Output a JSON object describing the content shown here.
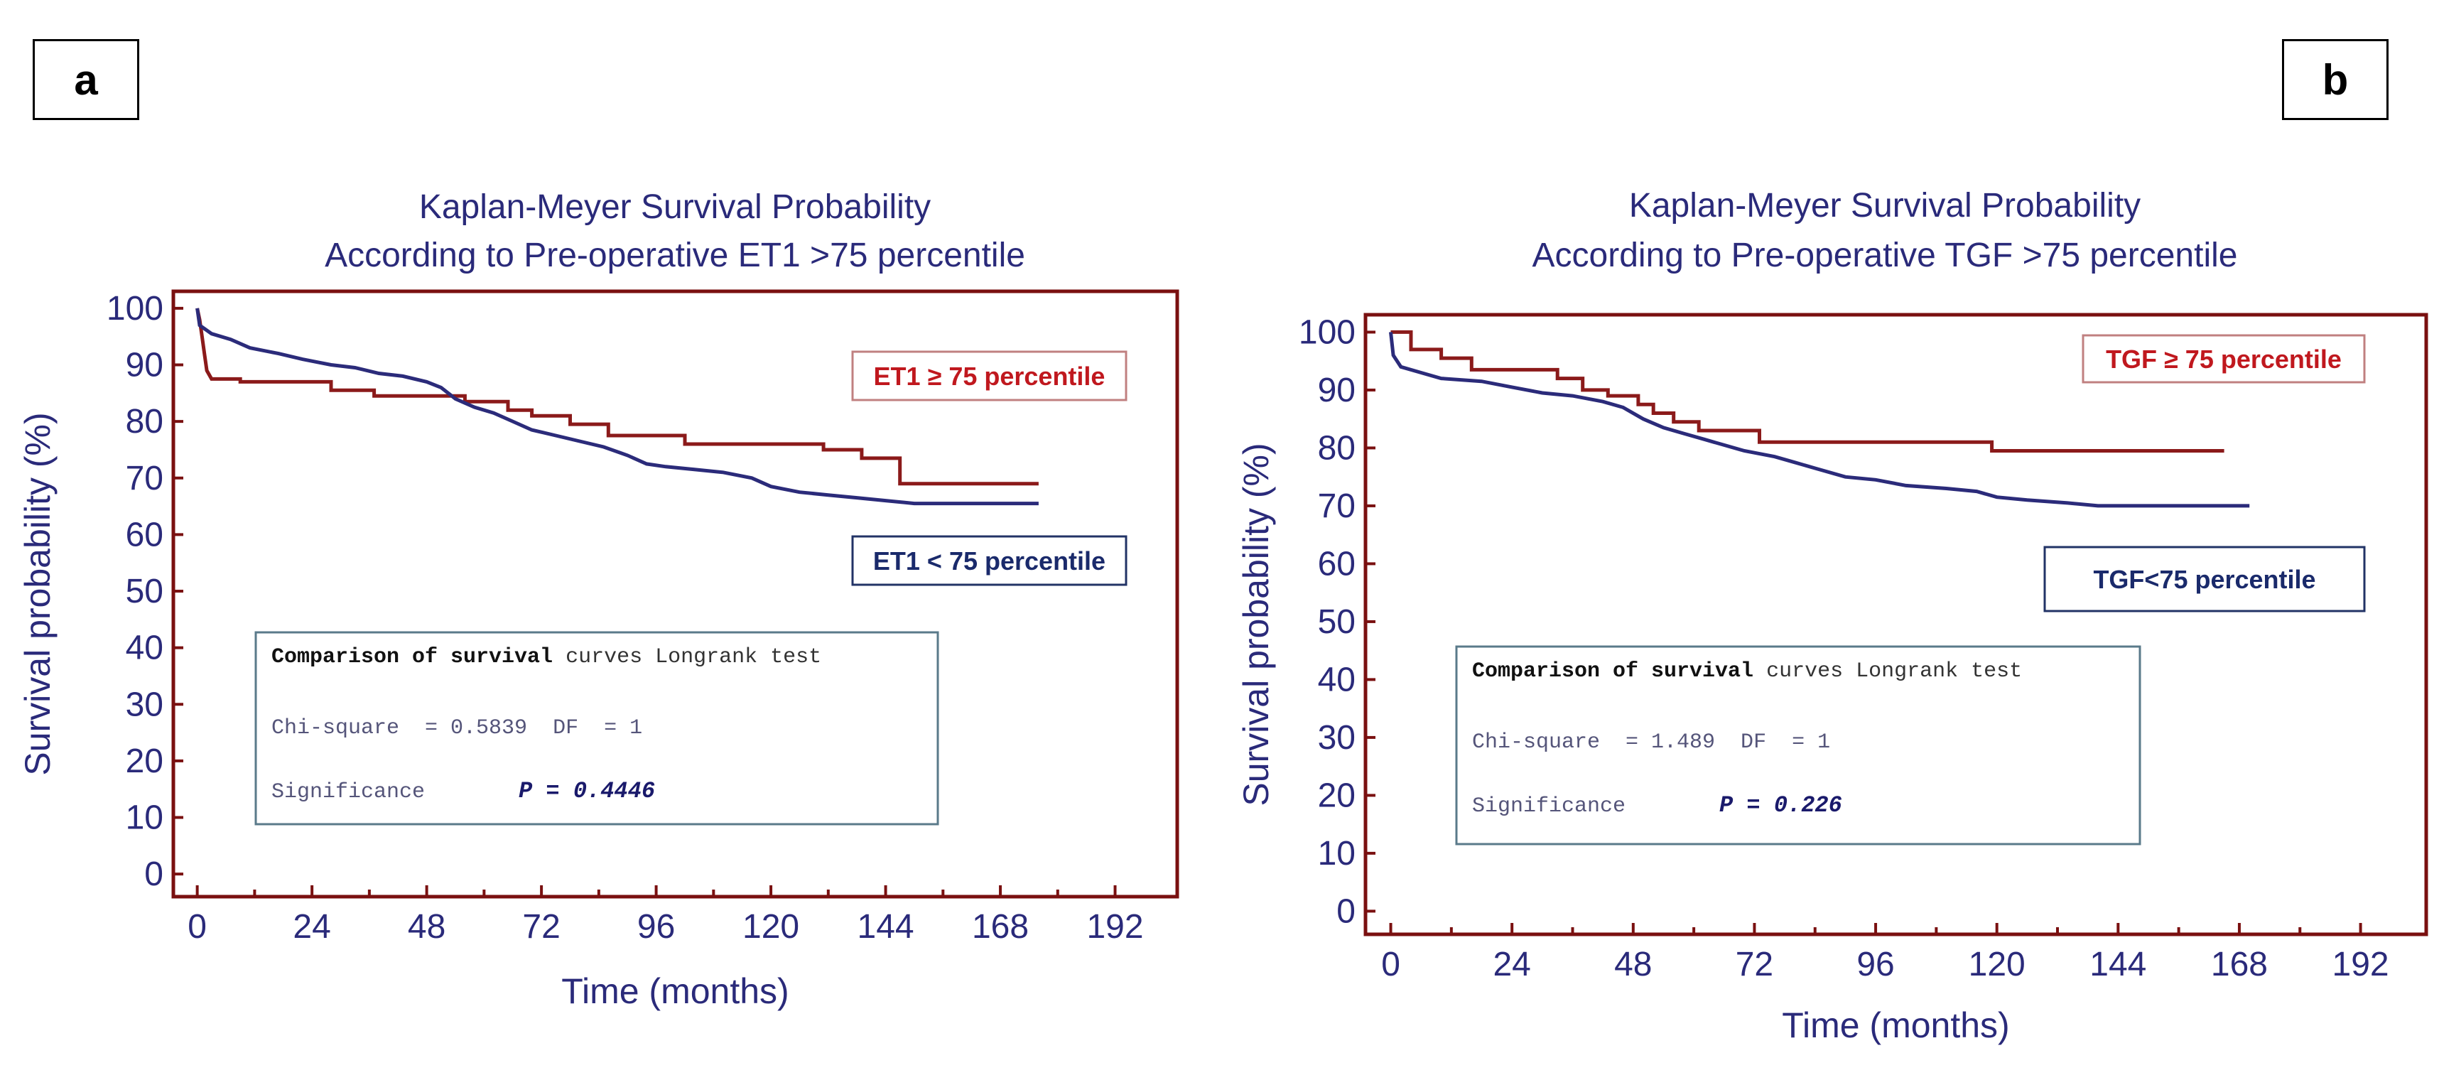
{
  "chart_data": [
    {
      "panel_label": "a",
      "type": "line",
      "subtype": "kaplan-meier",
      "title": [
        "Kaplan-Meyer Survival Probability",
        "According to Pre-operative ET1 >75 percentile"
      ],
      "xlabel": "Time (months)",
      "ylabel": "Survival probability (%)",
      "xticks": [
        0,
        24,
        48,
        72,
        96,
        120,
        144,
        168,
        192
      ],
      "yticks": [
        0,
        10,
        20,
        30,
        40,
        50,
        60,
        70,
        80,
        90,
        100
      ],
      "xlim": [
        -5,
        205
      ],
      "ylim": [
        -4,
        103
      ],
      "series": [
        {
          "name": "ET1 ≥ 75 percentile",
          "color": "#8b1a1a",
          "points": [
            [
              0,
              100
            ],
            [
              0.5,
              98
            ],
            [
              1,
              95
            ],
            [
              1.5,
              92
            ],
            [
              2,
              89
            ],
            [
              3,
              87.5
            ],
            [
              9,
              87.5
            ],
            [
              9,
              87
            ],
            [
              28,
              87
            ],
            [
              28,
              85.5
            ],
            [
              37,
              85.5
            ],
            [
              37,
              84.5
            ],
            [
              56,
              84.5
            ],
            [
              56,
              83.5
            ],
            [
              65,
              83.5
            ],
            [
              65,
              82
            ],
            [
              70,
              82
            ],
            [
              70,
              81
            ],
            [
              78,
              81
            ],
            [
              78,
              79.5
            ],
            [
              86,
              79.5
            ],
            [
              86,
              77.5
            ],
            [
              102,
              77.5
            ],
            [
              102,
              76
            ],
            [
              131,
              76
            ],
            [
              131,
              75
            ],
            [
              139,
              75
            ],
            [
              139,
              73.5
            ],
            [
              147,
              73.5
            ],
            [
              147,
              69
            ],
            [
              176,
              69
            ]
          ]
        },
        {
          "name": "ET1 < 75 percentile",
          "color": "#2b2b7a",
          "points": [
            [
              0,
              100
            ],
            [
              0.5,
              97
            ],
            [
              3,
              95.5
            ],
            [
              7,
              94.5
            ],
            [
              11,
              93
            ],
            [
              17,
              92
            ],
            [
              22,
              91
            ],
            [
              28,
              90
            ],
            [
              33,
              89.5
            ],
            [
              38,
              88.5
            ],
            [
              43,
              88
            ],
            [
              48,
              87
            ],
            [
              51,
              86
            ],
            [
              54,
              84
            ],
            [
              58,
              82.5
            ],
            [
              62,
              81.5
            ],
            [
              66,
              80
            ],
            [
              70,
              78.5
            ],
            [
              75,
              77.5
            ],
            [
              80,
              76.5
            ],
            [
              85,
              75.5
            ],
            [
              90,
              74
            ],
            [
              94,
              72.5
            ],
            [
              98,
              72
            ],
            [
              104,
              71.5
            ],
            [
              110,
              71
            ],
            [
              116,
              70
            ],
            [
              120,
              68.5
            ],
            [
              126,
              67.5
            ],
            [
              132,
              67
            ],
            [
              138,
              66.5
            ],
            [
              144,
              66
            ],
            [
              150,
              65.5
            ],
            [
              176,
              65.5
            ]
          ]
        }
      ],
      "legend": [
        {
          "text": "ET1 ≥ 75 percentile",
          "color": "#c0181e",
          "position": "top-right"
        },
        {
          "text": "ET1 < 75 percentile",
          "color": "#1a2a6b",
          "position": "middle-right"
        }
      ],
      "stats_box": {
        "heading_bold": "Comparison of survival",
        "heading_rest": " curves Longrank test",
        "chi_line": "Chi-square  = 0.5839  DF  = 1",
        "sig_label": "Significance",
        "p_value": "P = 0.4446"
      }
    },
    {
      "panel_label": "b",
      "type": "line",
      "subtype": "kaplan-meier",
      "title": [
        "Kaplan-Meyer Survival Probability",
        "According to Pre-operative TGF >75 percentile"
      ],
      "xlabel": "Time (months)",
      "ylabel": "Survival probability (%)",
      "xticks": [
        0,
        24,
        48,
        72,
        96,
        120,
        144,
        168,
        192
      ],
      "yticks": [
        0,
        10,
        20,
        30,
        40,
        50,
        60,
        70,
        80,
        90,
        100
      ],
      "xlim": [
        -5,
        205
      ],
      "ylim": [
        -4,
        103
      ],
      "series": [
        {
          "name": "TGF ≥ 75 percentile",
          "color": "#8b1a1a",
          "points": [
            [
              0,
              100
            ],
            [
              4,
              100
            ],
            [
              4,
              97
            ],
            [
              10,
              97
            ],
            [
              10,
              95.5
            ],
            [
              16,
              95.5
            ],
            [
              16,
              93.5
            ],
            [
              33,
              93.5
            ],
            [
              33,
              92
            ],
            [
              38,
              92
            ],
            [
              38,
              90
            ],
            [
              43,
              90
            ],
            [
              43,
              89
            ],
            [
              49,
              89
            ],
            [
              49,
              87.5
            ],
            [
              52,
              87.5
            ],
            [
              52,
              86
            ],
            [
              56,
              86
            ],
            [
              56,
              84.5
            ],
            [
              61,
              84.5
            ],
            [
              61,
              83
            ],
            [
              73,
              83
            ],
            [
              73,
              81
            ],
            [
              119,
              81
            ],
            [
              119,
              79.5
            ],
            [
              165,
              79.5
            ]
          ]
        },
        {
          "name": "TGF < 75 percentile",
          "color": "#2b2b7a",
          "points": [
            [
              0,
              100
            ],
            [
              0.5,
              96
            ],
            [
              2,
              94
            ],
            [
              6,
              93
            ],
            [
              10,
              92
            ],
            [
              18,
              91.5
            ],
            [
              24,
              90.5
            ],
            [
              30,
              89.5
            ],
            [
              36,
              89
            ],
            [
              42,
              88
            ],
            [
              46,
              87
            ],
            [
              50,
              85
            ],
            [
              54,
              83.5
            ],
            [
              58,
              82.5
            ],
            [
              62,
              81.5
            ],
            [
              66,
              80.5
            ],
            [
              70,
              79.5
            ],
            [
              76,
              78.5
            ],
            [
              80,
              77.5
            ],
            [
              84,
              76.5
            ],
            [
              90,
              75
            ],
            [
              96,
              74.5
            ],
            [
              102,
              73.5
            ],
            [
              110,
              73
            ],
            [
              116,
              72.5
            ],
            [
              120,
              71.5
            ],
            [
              126,
              71
            ],
            [
              134,
              70.5
            ],
            [
              140,
              70
            ],
            [
              170,
              70
            ]
          ]
        }
      ],
      "legend": [
        {
          "text": "TGF ≥ 75 percentile",
          "color": "#c0181e",
          "position": "top-right"
        },
        {
          "text": "TGF<75  percentile",
          "color": "#1a2a6b",
          "position": "middle-right"
        }
      ],
      "stats_box": {
        "heading_bold": "Comparison of survival",
        "heading_rest": " curves Longrank test",
        "chi_line": "Chi-square  = 1.489  DF  = 1",
        "sig_label": "Significance",
        "p_value": "P = 0.226"
      }
    }
  ],
  "colors": {
    "frame": "#7a1010",
    "text_blue": "#2a2a7a",
    "stats_text": "#55557a",
    "stats_border": "#5a7a8a"
  }
}
